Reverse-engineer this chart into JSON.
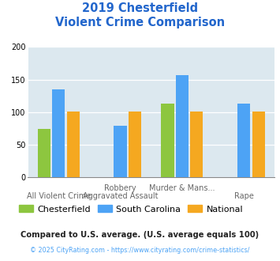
{
  "title_line1": "2019 Chesterfield",
  "title_line2": "Violent Crime Comparison",
  "groups": [
    "Chesterfield",
    "South Carolina",
    "National"
  ],
  "values": [
    [
      75,
      0,
      113,
      0
    ],
    [
      135,
      79,
      157,
      113
    ],
    [
      101,
      101,
      101,
      101
    ]
  ],
  "bar_colors": [
    "#8dc63f",
    "#4da3f5",
    "#f5a820"
  ],
  "chart_bg": "#dce8ef",
  "ylim": [
    0,
    200
  ],
  "yticks": [
    0,
    50,
    100,
    150,
    200
  ],
  "title_color": "#2266cc",
  "row1_labels": [
    "",
    "Robbery",
    "Murder & Mans...",
    ""
  ],
  "row2_labels": [
    "All Violent Crime",
    "Aggravated Assault",
    "",
    "Rape"
  ],
  "footer_text": "Compared to U.S. average. (U.S. average equals 100)",
  "copyright_text": "© 2025 CityRating.com - https://www.cityrating.com/crime-statistics/",
  "footer_color": "#222222",
  "copyright_color": "#4da3f5"
}
